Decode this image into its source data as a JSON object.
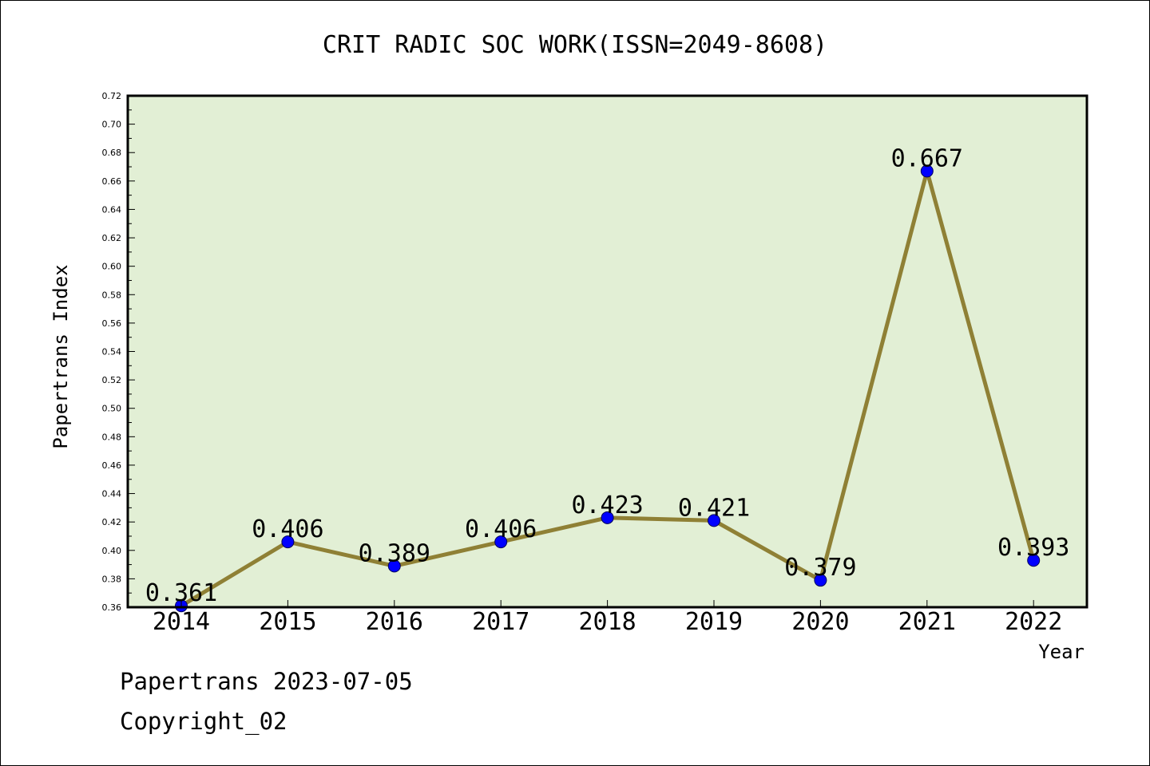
{
  "chart_data": {
    "type": "line",
    "title": "CRIT RADIC SOC WORK(ISSN=2049-8608)",
    "xlabel": "Year",
    "ylabel": "Papertrans Index",
    "categories": [
      "2014",
      "2015",
      "2016",
      "2017",
      "2018",
      "2019",
      "2020",
      "2021",
      "2022"
    ],
    "values": [
      0.361,
      0.406,
      0.389,
      0.406,
      0.423,
      0.421,
      0.379,
      0.667,
      0.393
    ],
    "data_labels": [
      "0.361",
      "0.406",
      "0.389",
      "0.406",
      "0.423",
      "0.421",
      "0.379",
      "0.667",
      "0.393"
    ],
    "ylim": [
      0.36,
      0.72
    ],
    "yticks": [
      "0.36",
      "0.38",
      "0.40",
      "0.42",
      "0.44",
      "0.46",
      "0.48",
      "0.50",
      "0.52",
      "0.54",
      "0.56",
      "0.58",
      "0.60",
      "0.62",
      "0.64",
      "0.66",
      "0.68",
      "0.70",
      "0.72"
    ],
    "grid": false,
    "colors": {
      "plot_background": "#e2efd5",
      "line": "#8f8035",
      "marker": "#0000ff"
    }
  },
  "footer": {
    "date_line": "Papertrans 2023-07-05",
    "copyright": "Copyright_02"
  }
}
